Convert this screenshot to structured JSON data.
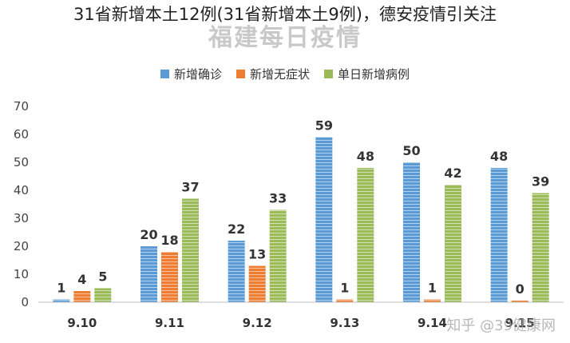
{
  "headline": "31省新增本土12例(31省新增本土9例)，德安疫情引关注",
  "watermark": "知乎 @39健康网",
  "colors": {
    "confirmed": "#5b9bd5",
    "asymptomatic": "#ed7d31",
    "daily_total": "#9bbb59",
    "gridline": "#e6e6e6",
    "axis": "#bfbfbf"
  },
  "chart_data": {
    "type": "bar",
    "title": "福建每日疫情",
    "categories": [
      "9.10",
      "9.11",
      "9.12",
      "9.13",
      "9.14",
      "9.15"
    ],
    "series": [
      {
        "name": "新增确诊",
        "values": [
          1,
          20,
          22,
          59,
          50,
          48
        ]
      },
      {
        "name": "新增无症状",
        "values": [
          4,
          18,
          13,
          1,
          1,
          0
        ]
      },
      {
        "name": "单日新增病例",
        "values": [
          5,
          37,
          33,
          48,
          42,
          39
        ]
      }
    ],
    "ylim": [
      0,
      70
    ],
    "yticks": [
      0,
      10,
      20,
      30,
      40,
      50,
      60,
      70
    ],
    "legend": "top-center",
    "grid": false
  }
}
